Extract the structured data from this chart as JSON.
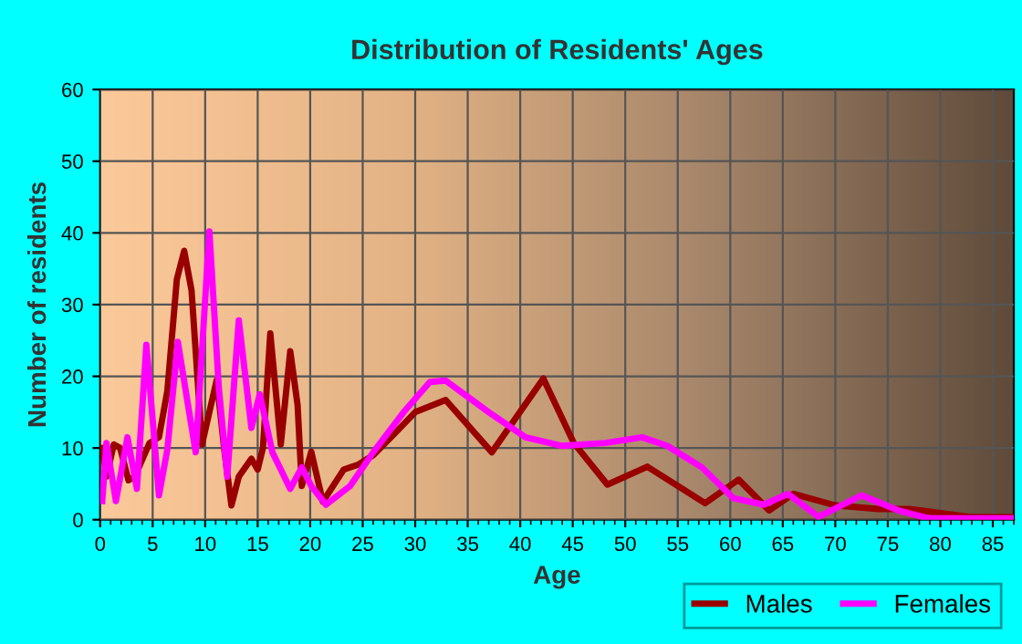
{
  "chart_data": {
    "type": "line",
    "title": "Distribution of Residents' Ages",
    "xlabel": "Age",
    "ylabel": "Number of residents",
    "xlim": [
      0,
      87
    ],
    "xticks": [
      0,
      5,
      10,
      15,
      20,
      25,
      30,
      35,
      40,
      45,
      50,
      55,
      60,
      65,
      70,
      75,
      80,
      85
    ],
    "ylim": [
      0,
      60
    ],
    "yticks": [
      0,
      10,
      20,
      30,
      40,
      50,
      60
    ],
    "grid": true,
    "legend": "bottom right",
    "line_style": "solid",
    "series": [
      {
        "name": "Males",
        "color": "#990000",
        "x": [
          0.2,
          0.6,
          1.3,
          1.9,
          2.7,
          3.3,
          4.7,
          5.6,
          6.4,
          7.3,
          8.0,
          8.7,
          9.7,
          10.4,
          11.1,
          11.8,
          12.5,
          13.2,
          14.4,
          15.0,
          15.5,
          16.2,
          17.2,
          18.1,
          18.8,
          19.2,
          20.1,
          21.2,
          23.2,
          24.6,
          26.0,
          27.7,
          30.0,
          32.9,
          37.3,
          42.2,
          45.1,
          48.3,
          52.1,
          57.6,
          60.8,
          63.7,
          66.0,
          70.0,
          74.1,
          77.0,
          82.8,
          86.8
        ],
        "values": [
          10,
          6,
          10.5,
          10,
          5.5,
          6,
          10.7,
          11.5,
          18,
          33.5,
          37.5,
          32,
          10.5,
          15,
          19.5,
          10,
          2,
          6,
          8.5,
          7,
          10,
          26,
          10.5,
          23.5,
          16,
          4.7,
          9.5,
          2.5,
          7,
          7.7,
          9,
          11.5,
          15,
          16.7,
          9.4,
          19.7,
          10.7,
          4.9,
          7.4,
          2.3,
          5.6,
          1.3,
          3.6,
          2,
          1.5,
          1.5,
          0.4,
          0.4
        ]
      },
      {
        "name": "Females",
        "color": "#ff00ff",
        "x": [
          0.2,
          0.6,
          1.5,
          2.6,
          3.5,
          4.4,
          5.6,
          6.4,
          7.4,
          8.1,
          9.1,
          10.4,
          11.3,
          12.1,
          13.2,
          14.4,
          15.2,
          16.4,
          18.1,
          19.2,
          20.1,
          21.5,
          23.8,
          26.0,
          28.9,
          31.4,
          32.9,
          37.0,
          40.5,
          44.0,
          48.1,
          51.6,
          54.0,
          57.3,
          60.3,
          63.2,
          65.5,
          68.4,
          72.5,
          76.0,
          78.9,
          86.8
        ],
        "values": [
          2.6,
          10.7,
          2.6,
          11.5,
          4.3,
          24.4,
          3.4,
          9.8,
          24.8,
          18.4,
          9.4,
          40.2,
          18.4,
          6,
          27.8,
          12.8,
          17.5,
          9.4,
          4.3,
          7.3,
          4.7,
          2.1,
          4.7,
          9.4,
          15,
          19.2,
          19.4,
          15,
          11.5,
          10.3,
          10.7,
          11.5,
          10.3,
          7.3,
          3,
          2.1,
          3.6,
          0.4,
          3.4,
          1.3,
          0.2,
          0.2
        ]
      }
    ]
  }
}
